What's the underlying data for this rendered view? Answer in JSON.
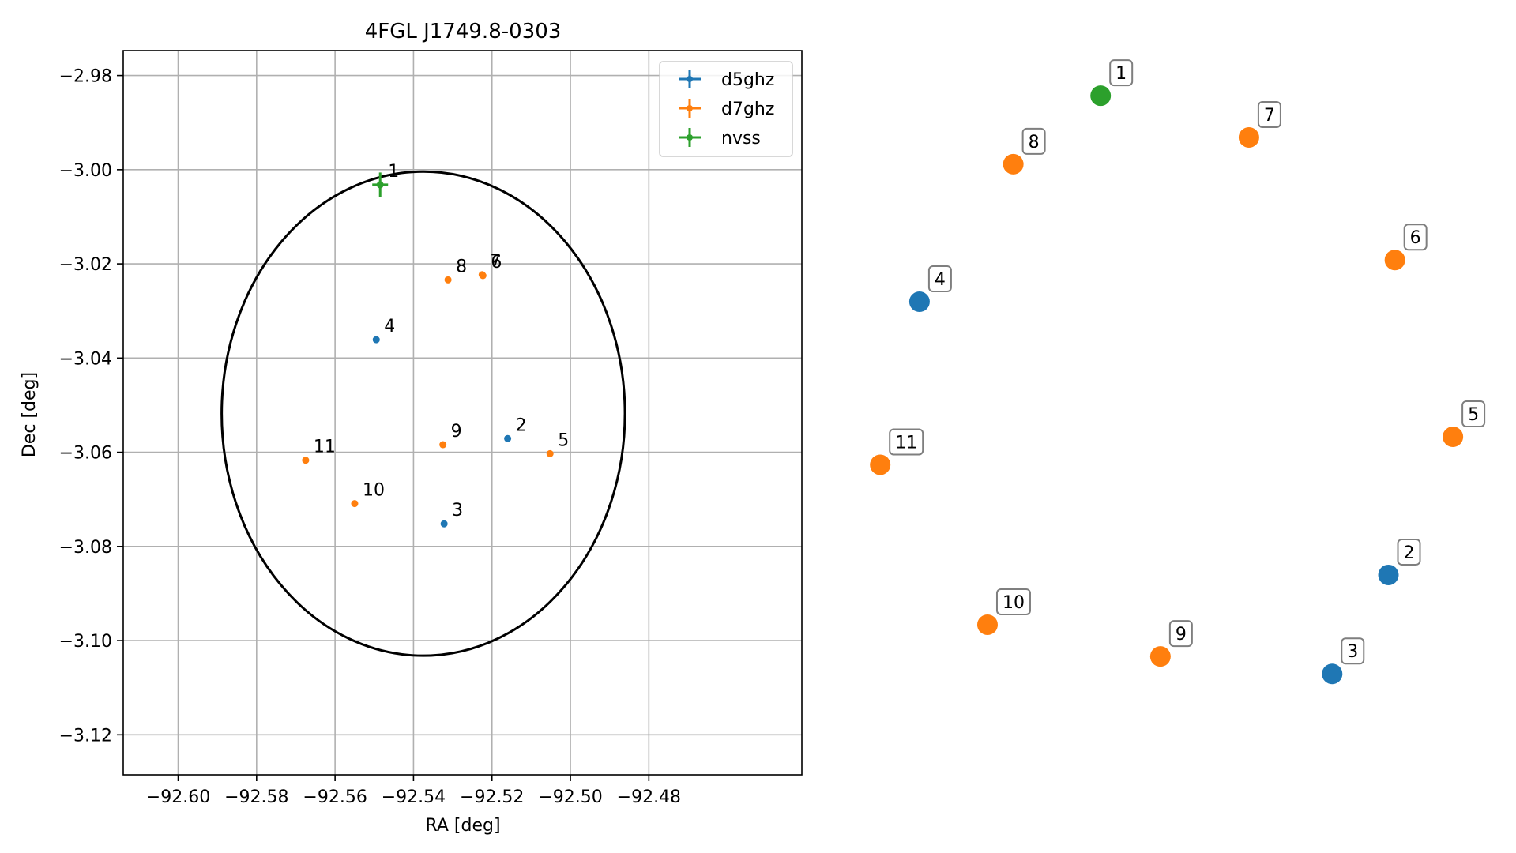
{
  "chart_data": [
    {
      "type": "scatter",
      "title": "4FGL J1749.8-0303",
      "xlabel": "RA [deg]",
      "ylabel": "Dec [deg]",
      "xlim": [
        -92.614,
        -92.441
      ],
      "ylim": [
        -3.1285,
        -2.9747
      ],
      "xticks": [
        "−92.60",
        "−92.58",
        "−92.56",
        "−92.54",
        "−92.52",
        "−92.50",
        "−92.48"
      ],
      "xtick_values": [
        -92.6,
        -92.58,
        -92.56,
        -92.54,
        -92.52,
        -92.5,
        -92.48
      ],
      "yticks": [
        "−2.98",
        "−3.00",
        "−3.02",
        "−3.04",
        "−3.06",
        "−3.08",
        "−3.10",
        "−3.12"
      ],
      "ytick_values": [
        -2.98,
        -3.0,
        -3.02,
        -3.04,
        -3.06,
        -3.08,
        -3.1,
        -3.12
      ],
      "grid": true,
      "legend_position": "top-right",
      "circle": {
        "center_ra": -92.5375,
        "center_dec": -3.0518,
        "radius_deg": 0.0514,
        "color": "#000000"
      },
      "series": [
        {
          "name": "d5ghz",
          "color": "#1f77b4",
          "points": [
            {
              "label": "2",
              "ra": -92.516,
              "dec": -3.0571
            },
            {
              "label": "3",
              "ra": -92.5322,
              "dec": -3.0752
            },
            {
              "label": "4",
              "ra": -92.5495,
              "dec": -3.0361
            }
          ]
        },
        {
          "name": "d7ghz",
          "color": "#ff7f0e",
          "points": [
            {
              "label": "5",
              "ra": -92.5052,
              "dec": -3.0603
            },
            {
              "label": "6",
              "ra": -92.5223,
              "dec": -3.0225
            },
            {
              "label": "7",
              "ra": -92.5225,
              "dec": -3.0223
            },
            {
              "label": "8",
              "ra": -92.5312,
              "dec": -3.0234
            },
            {
              "label": "9",
              "ra": -92.5325,
              "dec": -3.0584
            },
            {
              "label": "10",
              "ra": -92.555,
              "dec": -3.0709
            },
            {
              "label": "11",
              "ra": -92.5675,
              "dec": -3.0617
            }
          ]
        },
        {
          "name": "nvss",
          "color": "#2ca02c",
          "error_bars": true,
          "points": [
            {
              "label": "1",
              "ra": -92.5485,
              "dec": -3.0032,
              "ra_err": 0.0008,
              "dec_err": 0.0026
            }
          ]
        }
      ]
    },
    {
      "type": "scatter",
      "axes": "none",
      "points": [
        {
          "label": "1",
          "series": "nvss",
          "x": 0.383,
          "y": 0.982
        },
        {
          "label": "7",
          "series": "d7ghz",
          "x": 0.636,
          "y": 0.915
        },
        {
          "label": "8",
          "series": "d7ghz",
          "x": 0.234,
          "y": 0.872
        },
        {
          "label": "6",
          "series": "d7ghz",
          "x": 0.885,
          "y": 0.718
        },
        {
          "label": "4",
          "series": "d5ghz",
          "x": 0.074,
          "y": 0.651
        },
        {
          "label": "5",
          "series": "d7ghz",
          "x": 0.984,
          "y": 0.434
        },
        {
          "label": "11",
          "series": "d7ghz",
          "x": 0.007,
          "y": 0.389
        },
        {
          "label": "2",
          "series": "d5ghz",
          "x": 0.874,
          "y": 0.212
        },
        {
          "label": "10",
          "series": "d7ghz",
          "x": 0.19,
          "y": 0.132
        },
        {
          "label": "9",
          "series": "d7ghz",
          "x": 0.485,
          "y": 0.081
        },
        {
          "label": "3",
          "series": "d5ghz",
          "x": 0.778,
          "y": 0.053
        }
      ]
    }
  ]
}
